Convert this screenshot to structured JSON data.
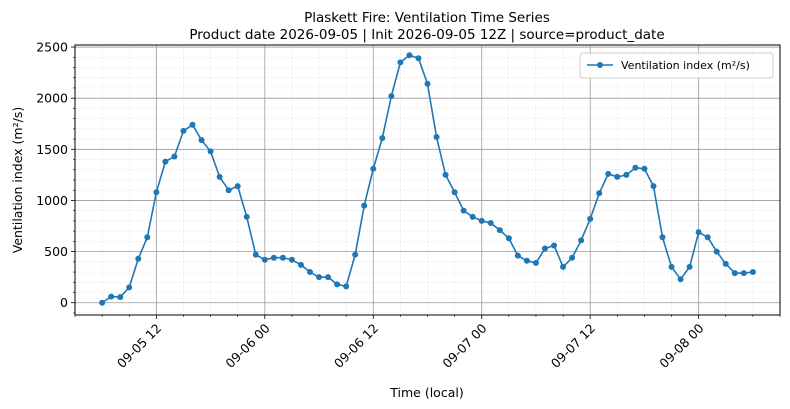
{
  "chart_data": {
    "type": "line",
    "title": "Plaskett Fire: Ventilation Time Series",
    "subtitle": "Product date 2026-09-05 | Init 2026-09-05 12Z | source=product_date",
    "xlabel": "Time (local)",
    "ylabel": "Ventilation index (m²/s)",
    "x_axis": {
      "type": "datetime",
      "range": [
        "2026-09-05 03:00",
        "2026-09-08 09:00"
      ],
      "major_ticks": [
        {
          "t": "2026-09-05 12:00",
          "label": "09-05 12"
        },
        {
          "t": "2026-09-06 00:00",
          "label": "09-06 00"
        },
        {
          "t": "2026-09-06 12:00",
          "label": "09-06 12"
        },
        {
          "t": "2026-09-07 00:00",
          "label": "09-07 00"
        },
        {
          "t": "2026-09-07 12:00",
          "label": "09-07 12"
        },
        {
          "t": "2026-09-08 00:00",
          "label": "09-08 00"
        }
      ],
      "minor_tick_hours": 3
    },
    "y_axis": {
      "range": [
        -120,
        2520
      ],
      "major_ticks": [
        0,
        500,
        1000,
        1500,
        2000,
        2500
      ],
      "minor_step": 100
    },
    "grid": true,
    "legend": {
      "position": "top-right"
    },
    "series": [
      {
        "name": "Ventilation index (m²/s)",
        "color": "#1f77b4",
        "start": "2026-09-05 06:00",
        "step_hours": 1,
        "values": [
          0,
          60,
          55,
          150,
          430,
          640,
          1080,
          1380,
          1430,
          1680,
          1740,
          1590,
          1480,
          1230,
          1100,
          1140,
          840,
          470,
          420,
          440,
          440,
          420,
          370,
          300,
          250,
          250,
          180,
          160,
          470,
          950,
          1310,
          1610,
          2020,
          2350,
          2420,
          2390,
          2140,
          1620,
          1250,
          1080,
          900,
          840,
          800,
          780,
          710,
          630,
          460,
          410,
          390,
          530,
          560,
          350,
          440,
          610,
          820,
          1070,
          1260,
          1230,
          1250,
          1320,
          1310,
          1140,
          640,
          350,
          230,
          350,
          690,
          640,
          500,
          380,
          290,
          290,
          300
        ]
      }
    ]
  }
}
